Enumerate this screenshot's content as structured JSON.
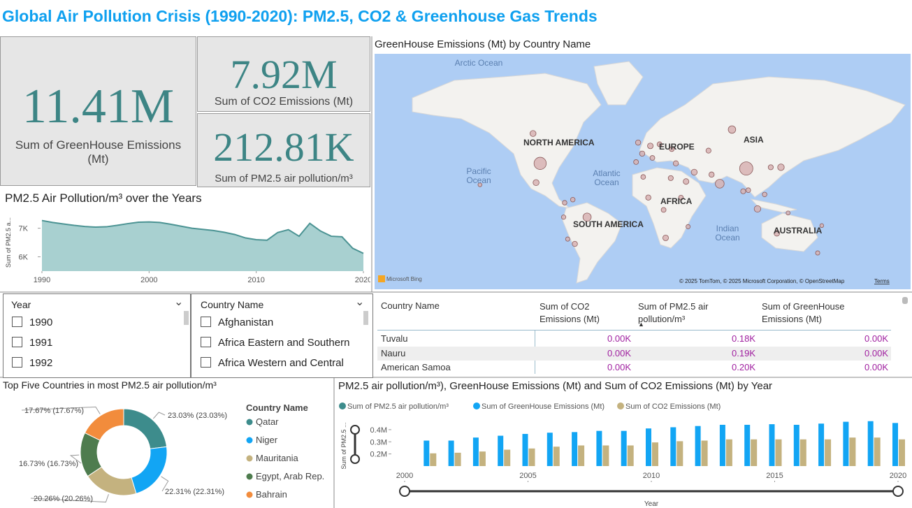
{
  "title": "Global Air Pollution Crisis (1990-2020): PM2.5, CO2 & Greenhouse Gas Trends",
  "kpis": [
    {
      "value": "11.41M",
      "label": "Sum of GreenHouse Emissions (Mt)"
    },
    {
      "value": "7.92M",
      "label": "Sum of CO2 Emissions (Mt)"
    },
    {
      "value": "212.81K",
      "label": "Sum of PM2.5 air pollution/m³"
    }
  ],
  "slicers": [
    {
      "title": "Year",
      "items": [
        "1990",
        "1991",
        "1992"
      ]
    },
    {
      "title": "Country Name",
      "items": [
        "Afghanistan",
        "Africa Eastern and Southern",
        "Africa Western and Central"
      ]
    }
  ],
  "table": {
    "columns": [
      "Country Name",
      "Sum of CO2 Emissions (Mt)",
      "Sum of PM2.5 air pollution/m³",
      "Sum of GreenHouse Emissions (Mt)"
    ],
    "rows": [
      [
        "Tuvalu",
        "0.00K",
        "0.18K",
        "0.00K"
      ],
      [
        "Nauru",
        "0.00K",
        "0.19K",
        "0.00K"
      ],
      [
        "American Samoa",
        "0.00K",
        "0.20K",
        "0.00K"
      ]
    ]
  },
  "chart_data": [
    {
      "type": "area",
      "title": "PM2.5 Air Pollution/m³ over the Years",
      "y_label": "Sum of PM2.5 a...",
      "color": "#a8d0d0",
      "x": [
        1990,
        1991,
        1992,
        1993,
        1994,
        1995,
        1996,
        1997,
        1998,
        1999,
        2000,
        2001,
        2002,
        2003,
        2004,
        2005,
        2006,
        2007,
        2008,
        2009,
        2010,
        2011,
        2012,
        2013,
        2014,
        2015,
        2016,
        2017,
        2018,
        2019,
        2020
      ],
      "values": [
        7270,
        7200,
        7150,
        7100,
        7060,
        7040,
        7050,
        7100,
        7160,
        7210,
        7220,
        7200,
        7140,
        7070,
        7000,
        6960,
        6920,
        6860,
        6780,
        6660,
        6600,
        6580,
        6850,
        6950,
        6720,
        7170,
        6900,
        6720,
        6700,
        6300,
        6120
      ],
      "xlim": [
        1990,
        2020
      ],
      "xticks": [
        1990,
        2000,
        2010,
        2020
      ],
      "ylim": [
        5500,
        7650
      ],
      "yticks": [
        {
          "value": 6000,
          "label": "6K"
        },
        {
          "value": 7000,
          "label": "7K"
        }
      ]
    },
    {
      "type": "map",
      "title": "GreenHouse Emissions (Mt) by Country Name",
      "oceans": [
        "Arctic Ocean",
        "Pacific Ocean",
        "Atlantic Ocean",
        "Indian Ocean"
      ],
      "continents": [
        "NORTH AMERICA",
        "EUROPE",
        "ASIA",
        "AFRICA",
        "SOUTH AMERICA",
        "AUSTRALIA"
      ],
      "brand": "Microsoft Bing",
      "attribution": "© 2025 TomTom, © 2025 Microsoft Corporation, © OpenStreetMap",
      "terms": "Terms",
      "color": "#d7b3b3",
      "points": [
        {
          "lon": -98,
          "lat": 39,
          "value": 240000
        },
        {
          "lon": 104,
          "lat": 35,
          "value": 300000
        },
        {
          "lon": 78,
          "lat": 22,
          "value": 90000
        },
        {
          "lon": 90,
          "lat": 60,
          "value": 50000
        },
        {
          "lon": -52,
          "lat": -10,
          "value": 70000
        },
        {
          "lon": -105,
          "lat": 58,
          "value": 20000
        },
        {
          "lon": -102,
          "lat": 23,
          "value": 20000
        },
        {
          "lon": 115,
          "lat": -2,
          "value": 30000
        },
        {
          "lon": 138,
          "lat": 36,
          "value": 30000
        },
        {
          "lon": 10,
          "lat": 51,
          "value": 15000
        },
        {
          "lon": -2,
          "lat": 53,
          "value": 10000
        },
        {
          "lon": 2,
          "lat": 46,
          "value": 10000
        },
        {
          "lon": 53,
          "lat": 32,
          "value": 20000
        },
        {
          "lon": 45,
          "lat": 24,
          "value": 15000
        },
        {
          "lon": 25,
          "lat": -29,
          "value": 15000
        },
        {
          "lon": 8,
          "lat": 9,
          "value": 10000
        },
        {
          "lon": 30,
          "lat": 27,
          "value": 8000
        },
        {
          "lon": 134,
          "lat": -25,
          "value": 15000
        },
        {
          "lon": -64,
          "lat": -34,
          "value": 10000
        },
        {
          "lon": 35,
          "lat": 39,
          "value": 10000
        },
        {
          "lon": 70,
          "lat": 30,
          "value": 10000
        },
        {
          "lon": 101,
          "lat": 15,
          "value": 8000
        },
        {
          "lon": 67,
          "lat": 48,
          "value": 8000
        },
        {
          "lon": 23,
          "lat": -3,
          "value": 6000
        },
        {
          "lon": 40,
          "lat": 9,
          "value": 5000
        },
        {
          "lon": -74,
          "lat": 4,
          "value": 4000
        },
        {
          "lon": -75,
          "lat": -10,
          "value": 3000
        },
        {
          "lon": -66,
          "lat": 7,
          "value": 4000
        },
        {
          "lon": 122,
          "lat": 12,
          "value": 4000
        },
        {
          "lon": 106,
          "lat": 16,
          "value": 5000
        },
        {
          "lon": 3,
          "lat": 28,
          "value": 5000
        },
        {
          "lon": 31,
          "lat": 49,
          "value": 6000
        },
        {
          "lon": 19,
          "lat": 52,
          "value": 6000
        },
        {
          "lon": -4,
          "lat": 40,
          "value": 6000
        },
        {
          "lon": 12,
          "lat": 43,
          "value": 6000
        },
        {
          "lon": 128,
          "lat": 36,
          "value": 8000
        },
        {
          "lon": 174,
          "lat": -41,
          "value": 2000
        },
        {
          "lon": 47,
          "lat": -19,
          "value": 2000
        },
        {
          "lon": -71,
          "lat": -30,
          "value": 2000
        },
        {
          "lon": 178,
          "lat": -18,
          "value": 500
        },
        {
          "lon": 145,
          "lat": -6,
          "value": 1000
        },
        {
          "lon": -157,
          "lat": 21,
          "value": 500
        }
      ]
    },
    {
      "type": "donut",
      "title": "Top Five Countries in most PM2.5 air pollution/m³",
      "legend_title": "Country Name",
      "categories": [
        "Qatar",
        "Niger",
        "Mauritania",
        "Egypt, Arab Rep.",
        "Bahrain"
      ],
      "values": [
        23.03,
        22.31,
        20.26,
        16.73,
        17.67
      ],
      "value_labels": [
        "23.03% (23.03%)",
        "22.31% (22.31%)",
        "20.26% (20.26%)",
        "16.73% (16.73%)",
        "17.67% (17.67%)"
      ],
      "colors": [
        "#3d8c8c",
        "#12a5f4",
        "#c4b27f",
        "#4e7c4e",
        "#f28c3c"
      ]
    },
    {
      "type": "bar",
      "title": "PM2.5 air pollution/m³), GreenHouse Emissions (Mt) and Sum of CO2 Emissions (Mt) by Year",
      "y_label": "Sum of PM2.5 ...",
      "x_label": "Year",
      "x": [
        2001,
        2002,
        2003,
        2004,
        2005,
        2006,
        2007,
        2008,
        2009,
        2010,
        2011,
        2012,
        2013,
        2014,
        2015,
        2016,
        2017,
        2018,
        2019,
        2020
      ],
      "xlim": [
        2000,
        2020
      ],
      "xticks": [
        2000,
        2005,
        2010,
        2015,
        2020
      ],
      "ylim": [
        100000,
        480000
      ],
      "yticks": [
        {
          "value": 200000,
          "label": "0.2M"
        },
        {
          "value": 300000,
          "label": "0.3M"
        },
        {
          "value": 400000,
          "label": "0.4M"
        }
      ],
      "series": [
        {
          "name": "Sum of PM2.5 air pollution/m³",
          "color": "#3d8c8c"
        },
        {
          "name": "Sum of GreenHouse Emissions (Mt)",
          "color": "#12a5f4",
          "values": [
            310000,
            310000,
            335000,
            350000,
            365000,
            375000,
            380000,
            390000,
            390000,
            410000,
            420000,
            430000,
            440000,
            440000,
            445000,
            440000,
            450000,
            465000,
            470000,
            455000
          ]
        },
        {
          "name": "Sum of CO2 Emissions (Mt)",
          "color": "#c4b27f",
          "values": [
            205000,
            210000,
            220000,
            235000,
            245000,
            260000,
            270000,
            270000,
            270000,
            295000,
            305000,
            310000,
            320000,
            320000,
            320000,
            320000,
            320000,
            335000,
            335000,
            320000
          ]
        }
      ]
    }
  ]
}
